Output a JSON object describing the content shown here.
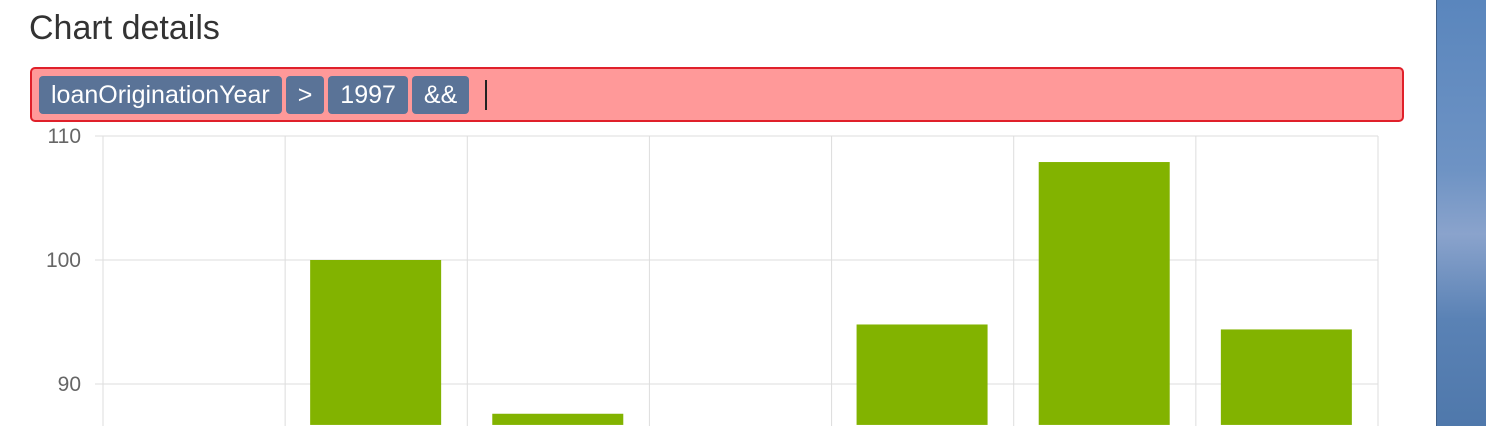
{
  "page": {
    "heading": "Chart details"
  },
  "filter": {
    "tokens": [
      "loanOriginationYear",
      ">",
      "1997",
      "&&"
    ],
    "state": "error",
    "colors": {
      "background": "#ff9999",
      "border": "#e0202a",
      "token": "#5a7397"
    }
  },
  "chart_data": {
    "type": "bar",
    "categories": [
      "",
      "",
      "",
      "",
      "",
      "",
      ""
    ],
    "values": [
      null,
      100,
      87.6,
      null,
      94.8,
      107.9,
      94.4
    ],
    "ylim": [
      86.7,
      110
    ],
    "yticks": [
      90,
      100,
      110
    ],
    "grid": true,
    "colors": {
      "bar": "#82b300",
      "grid": "#dddddd"
    }
  }
}
